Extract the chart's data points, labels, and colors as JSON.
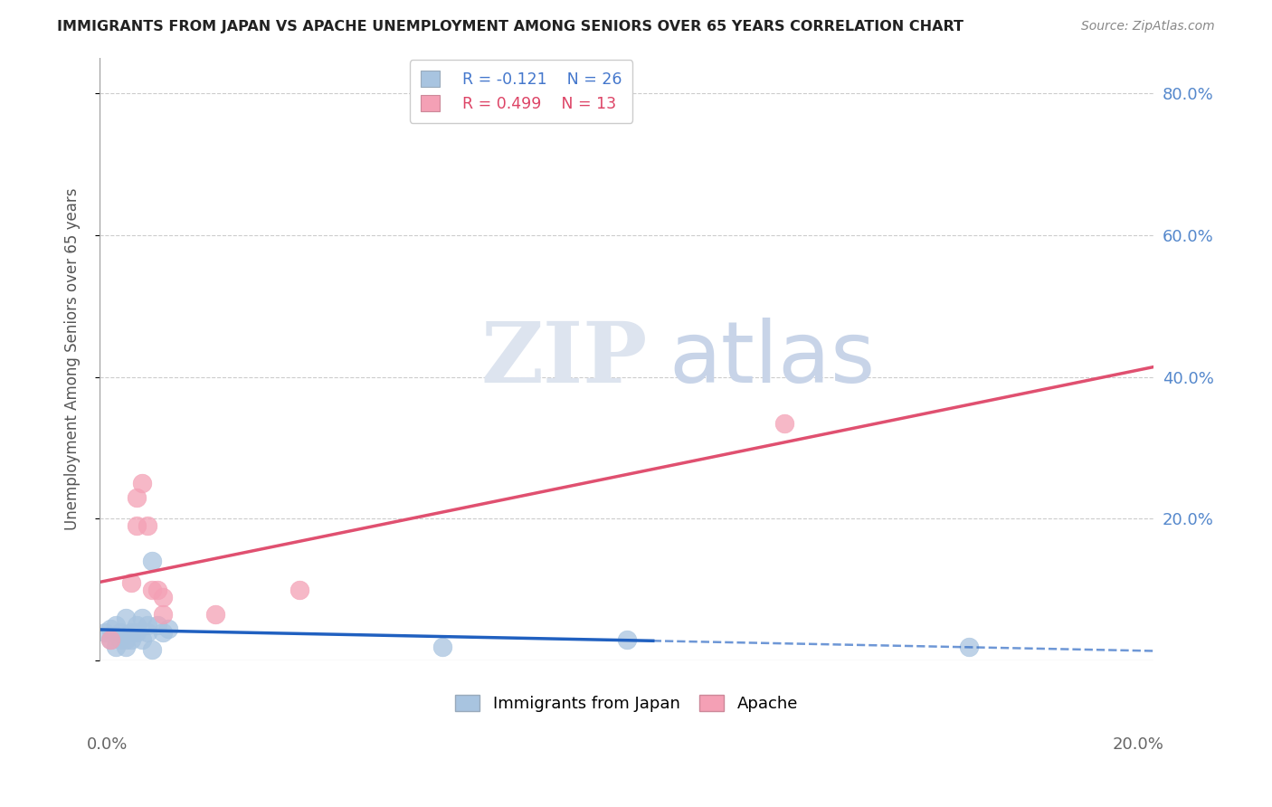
{
  "title": "IMMIGRANTS FROM JAPAN VS APACHE UNEMPLOYMENT AMONG SENIORS OVER 65 YEARS CORRELATION CHART",
  "source": "Source: ZipAtlas.com",
  "ylabel": "Unemployment Among Seniors over 65 years",
  "ytick_values": [
    0.0,
    0.2,
    0.4,
    0.6,
    0.8
  ],
  "xlim": [
    0,
    0.2
  ],
  "ylim": [
    0,
    0.85
  ],
  "legend_blue_r": "R = -0.121",
  "legend_blue_n": "N = 26",
  "legend_pink_r": "R = 0.499",
  "legend_pink_n": "N = 13",
  "legend_label_blue": "Immigrants from Japan",
  "legend_label_pink": "Apache",
  "blue_color": "#a8c4e0",
  "pink_color": "#f4a0b5",
  "blue_line_color": "#2060c0",
  "pink_line_color": "#e05070",
  "background_color": "#ffffff",
  "japan_x": [
    0.001,
    0.002,
    0.002,
    0.003,
    0.003,
    0.004,
    0.004,
    0.005,
    0.005,
    0.005,
    0.006,
    0.006,
    0.007,
    0.007,
    0.008,
    0.008,
    0.009,
    0.009,
    0.01,
    0.01,
    0.011,
    0.012,
    0.013,
    0.065,
    0.1,
    0.165
  ],
  "japan_y": [
    0.04,
    0.03,
    0.045,
    0.02,
    0.05,
    0.03,
    0.04,
    0.02,
    0.03,
    0.06,
    0.04,
    0.03,
    0.05,
    0.04,
    0.03,
    0.06,
    0.05,
    0.04,
    0.015,
    0.14,
    0.05,
    0.04,
    0.045,
    0.02,
    0.03,
    0.02
  ],
  "apache_x": [
    0.002,
    0.006,
    0.007,
    0.007,
    0.008,
    0.009,
    0.01,
    0.011,
    0.012,
    0.012,
    0.022,
    0.038,
    0.13
  ],
  "apache_y": [
    0.03,
    0.11,
    0.19,
    0.23,
    0.25,
    0.19,
    0.1,
    0.1,
    0.065,
    0.09,
    0.065,
    0.1,
    0.335
  ]
}
